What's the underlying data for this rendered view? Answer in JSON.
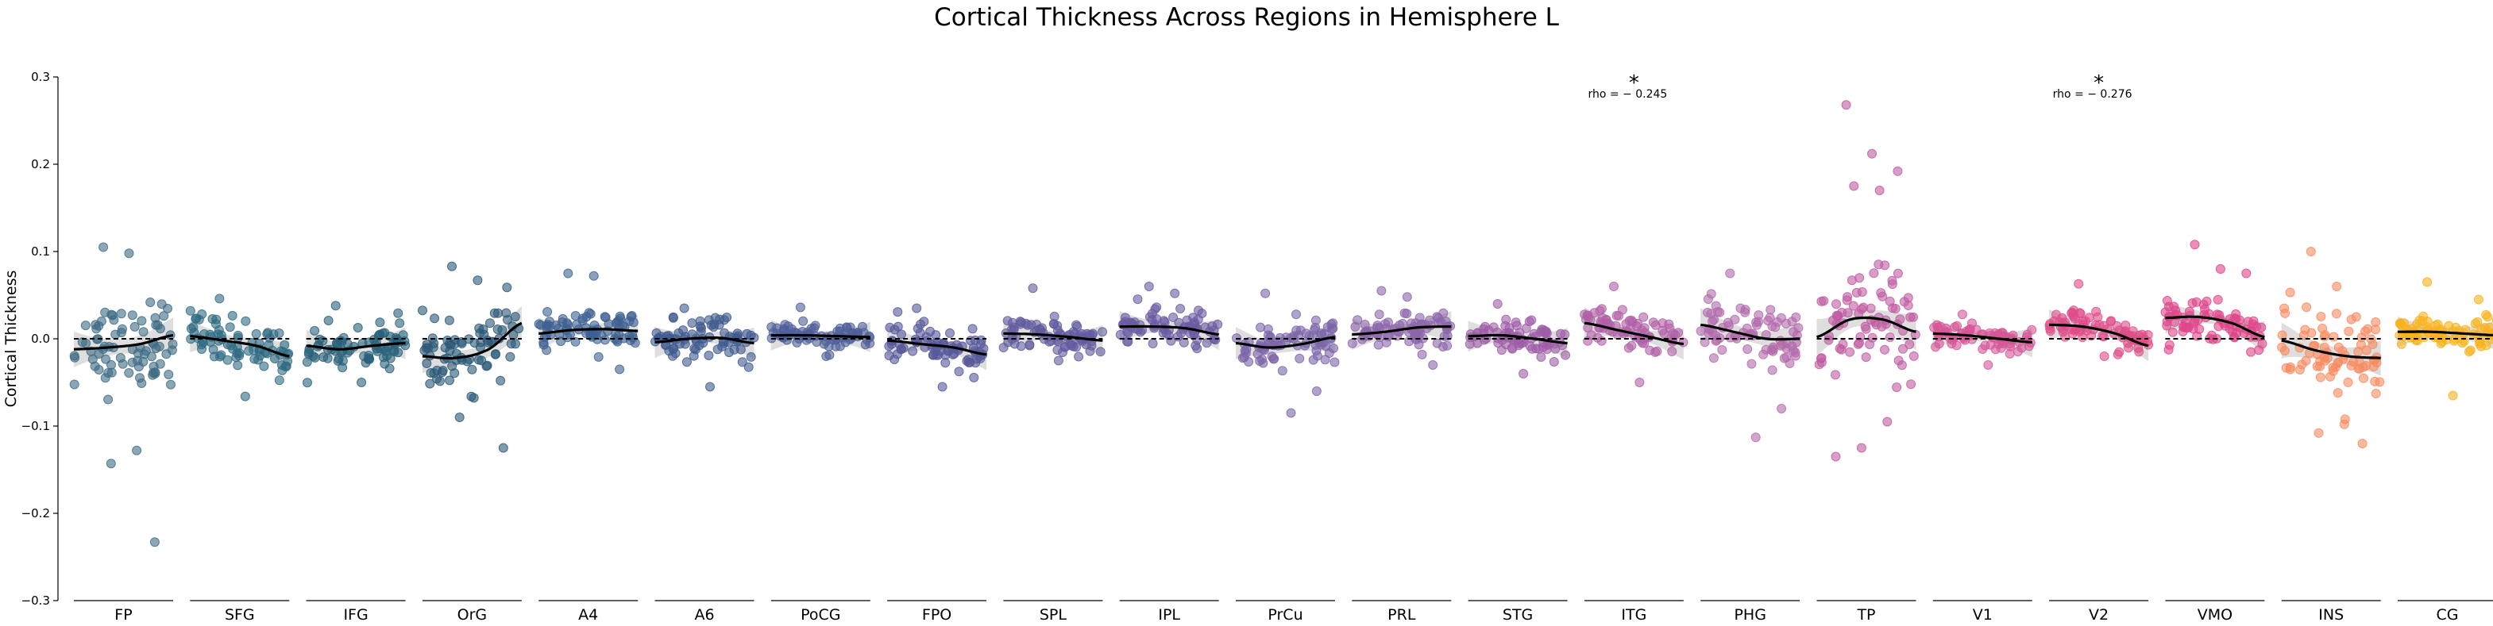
{
  "chart_data": {
    "type": "scatter",
    "title": "Cortical Thickness Across Regions in Hemisphere L",
    "ylabel": "Cortical Thickness",
    "xlabel": "",
    "ylim": [
      -0.3,
      0.3
    ],
    "yticks": [
      -0.3,
      -0.2,
      -0.1,
      0.0,
      0.1,
      0.2,
      0.3
    ],
    "reference_line": 0.0,
    "grid": false,
    "categories": [
      "FP",
      "SFG",
      "IFG",
      "OrG",
      "A4",
      "A6",
      "PoCG",
      "FPO",
      "SPL",
      "IPL",
      "PrCu",
      "PRL",
      "STG",
      "ITG",
      "PHG",
      "TP",
      "V1",
      "V2",
      "VMO",
      "INS",
      "CG"
    ],
    "colors": [
      "#3e6b84",
      "#2f6a82",
      "#28607a",
      "#2a5876",
      "#3d6191",
      "#3f5a8e",
      "#4f5f99",
      "#56589a",
      "#615c9f",
      "#6b5ba2",
      "#7c66a8",
      "#8c66aa",
      "#9e5ea7",
      "#b161a6",
      "#b36aac",
      "#bf5ba2",
      "#d65797",
      "#df4d89",
      "#e0468a",
      "#f88b60",
      "#f9b21c"
    ],
    "series": [
      {
        "category": "FP",
        "trend": [
          -0.012,
          -0.01,
          -0.006,
          0.004
        ],
        "extremes": [
          0.105,
          0.098,
          -0.233,
          -0.143,
          -0.128
        ],
        "spread": 0.045
      },
      {
        "category": "SFG",
        "trend": [
          0.003,
          -0.002,
          -0.008,
          -0.02
        ],
        "extremes": [
          0.046,
          -0.066
        ],
        "spread": 0.025
      },
      {
        "category": "IFG",
        "trend": [
          -0.008,
          -0.012,
          -0.008,
          -0.005
        ],
        "extremes": [
          0.038,
          -0.05
        ],
        "spread": 0.022
      },
      {
        "category": "OrG",
        "trend": [
          -0.02,
          -0.022,
          -0.012,
          0.018
        ],
        "extremes": [
          0.083,
          0.067,
          -0.125,
          -0.09
        ],
        "spread": 0.035
      },
      {
        "category": "A4",
        "trend": [
          0.006,
          0.01,
          0.011,
          0.009
        ],
        "extremes": [
          0.075,
          0.072,
          -0.035
        ],
        "spread": 0.02
      },
      {
        "category": "A6",
        "trend": [
          -0.004,
          0.0,
          0.001,
          -0.005
        ],
        "extremes": [
          0.035,
          -0.055
        ],
        "spread": 0.02
      },
      {
        "category": "PoCG",
        "trend": [
          0.004,
          0.004,
          0.003,
          0.002
        ],
        "extremes": [
          0.036,
          -0.02
        ],
        "spread": 0.014
      },
      {
        "category": "FPO",
        "trend": [
          -0.002,
          -0.006,
          -0.01,
          -0.018
        ],
        "extremes": [
          0.035,
          -0.055
        ],
        "spread": 0.02
      },
      {
        "category": "SPL",
        "trend": [
          0.006,
          0.005,
          0.002,
          -0.002
        ],
        "extremes": [
          0.058,
          -0.025
        ],
        "spread": 0.016
      },
      {
        "category": "IPL",
        "trend": [
          0.014,
          0.014,
          0.012,
          0.005
        ],
        "extremes": [
          0.06,
          0.052
        ],
        "spread": 0.018
      },
      {
        "category": "PrCu",
        "trend": [
          -0.005,
          -0.01,
          -0.006,
          0.002
        ],
        "extremes": [
          0.052,
          -0.085,
          -0.06
        ],
        "spread": 0.025
      },
      {
        "category": "PRL",
        "trend": [
          0.005,
          0.008,
          0.013,
          0.014
        ],
        "extremes": [
          0.055,
          0.048,
          -0.03
        ],
        "spread": 0.02
      },
      {
        "category": "STG",
        "trend": [
          0.003,
          0.004,
          0.0,
          -0.005
        ],
        "extremes": [
          0.04,
          -0.04
        ],
        "spread": 0.016
      },
      {
        "category": "ITG",
        "trend": [
          0.018,
          0.01,
          0.002,
          -0.006
        ],
        "extremes": [
          0.06,
          -0.05
        ],
        "spread": 0.02
      },
      {
        "category": "PHG",
        "trend": [
          0.016,
          0.008,
          0.0,
          0.0
        ],
        "extremes": [
          0.075,
          -0.113,
          -0.08
        ],
        "spread": 0.032
      },
      {
        "category": "TP",
        "trend": [
          0.002,
          0.022,
          0.022,
          0.008
        ],
        "extremes": [
          0.268,
          0.212,
          0.192,
          0.175,
          0.17,
          -0.135,
          -0.125,
          -0.095
        ],
        "spread": 0.05
      },
      {
        "category": "V1",
        "trend": [
          0.006,
          0.004,
          0.0,
          -0.004
        ],
        "extremes": [
          0.028,
          -0.03
        ],
        "spread": 0.012
      },
      {
        "category": "V2",
        "trend": [
          0.016,
          0.014,
          0.006,
          -0.008
        ],
        "extremes": [
          0.063,
          -0.02
        ],
        "spread": 0.016
      },
      {
        "category": "VMO",
        "trend": [
          0.024,
          0.025,
          0.018,
          0.002
        ],
        "extremes": [
          0.108,
          0.08,
          0.075
        ],
        "spread": 0.02
      },
      {
        "category": "INS",
        "trend": [
          -0.002,
          -0.013,
          -0.02,
          -0.022
        ],
        "extremes": [
          0.1,
          0.06,
          -0.12,
          -0.108,
          -0.098
        ],
        "spread": 0.045
      },
      {
        "category": "CG",
        "trend": [
          0.008,
          0.008,
          0.006,
          0.004
        ],
        "extremes": [
          0.065,
          -0.065,
          0.045
        ],
        "spread": 0.016
      }
    ],
    "annotations": [
      {
        "category": "ITG",
        "star": "*",
        "text": "rho = − 0.245"
      },
      {
        "category": "V2",
        "star": "*",
        "text": "rho = − 0.276"
      }
    ]
  }
}
